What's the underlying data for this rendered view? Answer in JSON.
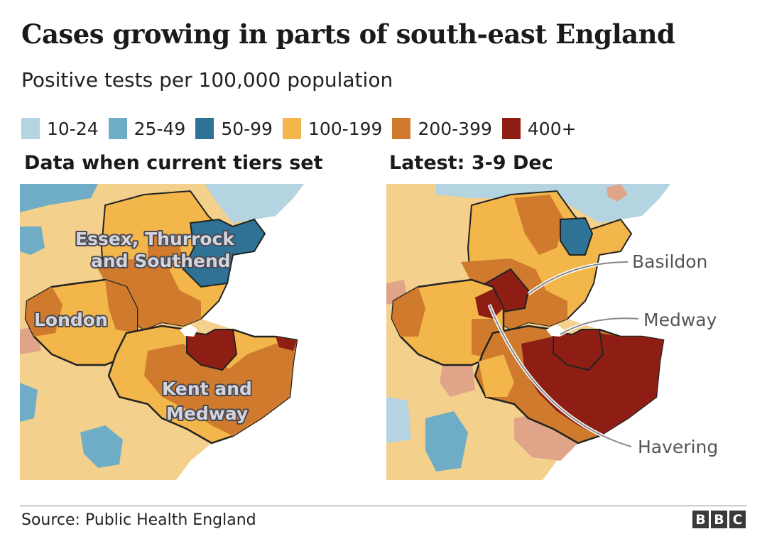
{
  "title": "Cases growing in parts of south-east England",
  "subtitle": "Positive tests per 100,000 population",
  "legend": [
    {
      "label": "10-24",
      "color": "#b3d4e0"
    },
    {
      "label": "25-49",
      "color": "#6fadc6"
    },
    {
      "label": "50-99",
      "color": "#2e7396"
    },
    {
      "label": "100-199",
      "color": "#f2b64a"
    },
    {
      "label": "200-399",
      "color": "#cf7a2c"
    },
    {
      "label": "400+",
      "color": "#8e1e14"
    }
  ],
  "colors": {
    "low_beige": "#f4d08d",
    "low_pink": "#e0a588",
    "boundary": "#222222",
    "sea": "#ffffff"
  },
  "panels": {
    "left": {
      "title": "Data when current tiers set",
      "region_labels": {
        "essex_line1": "Essex, Thurrock",
        "essex_line2": "and Southend",
        "london": "London",
        "kent_line1": "Kent and",
        "kent_line2": "Medway"
      }
    },
    "right": {
      "title": "Latest: 3-9 Dec",
      "annotations": [
        "Basildon",
        "Medway",
        "Havering"
      ]
    }
  },
  "source": "Source: Public Health England",
  "logo": [
    "B",
    "B",
    "C"
  ]
}
